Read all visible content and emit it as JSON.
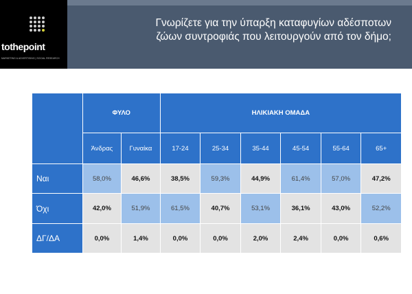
{
  "header": {
    "logo_text": "tothepoint",
    "logo_sub": "MARKETING & ADVERTISING | SOCIAL RESEARCH",
    "title_line1": "Γνωρίζετε για την ύπαρξη καταφυγίων αδέσποτων",
    "title_line2": "ζώων συντροφιάς που λειτουργούν από τον δήμο;"
  },
  "colors": {
    "header_blue": "#2e72c9",
    "highlight": "#9cc0ea",
    "cell_grey": "#e3e3e3",
    "band": "#4a5a6f"
  },
  "chart_data": {
    "type": "table",
    "groups": [
      {
        "label": "ΦΥΛΟ",
        "span": 2
      },
      {
        "label": "ΗΛΙΚΙΑΚΗ ΟΜΑΔΑ",
        "span": 6
      }
    ],
    "columns": [
      "Άνδρας",
      "Γυναίκα",
      "17-24",
      "25-34",
      "35-44",
      "45-54",
      "55-64",
      "65+"
    ],
    "rows": [
      {
        "label": "Ναι",
        "values": [
          "58,0%",
          "46,6%",
          "38,5%",
          "59,3%",
          "44,9%",
          "61,4%",
          "57,0%",
          "47,2%"
        ],
        "highlight": [
          true,
          false,
          false,
          true,
          false,
          true,
          true,
          false
        ]
      },
      {
        "label": "Όχι",
        "values": [
          "42,0%",
          "51,9%",
          "61,5%",
          "40,7%",
          "53,1%",
          "36,1%",
          "43,0%",
          "52,2%"
        ],
        "highlight": [
          false,
          true,
          true,
          false,
          true,
          false,
          false,
          true
        ]
      },
      {
        "label": "ΔΓ/ΔΑ",
        "values": [
          "0,0%",
          "1,4%",
          "0,0%",
          "0,0%",
          "2,0%",
          "2,4%",
          "0,0%",
          "0,6%"
        ],
        "highlight": [
          false,
          false,
          false,
          false,
          false,
          false,
          false,
          false
        ]
      }
    ]
  }
}
